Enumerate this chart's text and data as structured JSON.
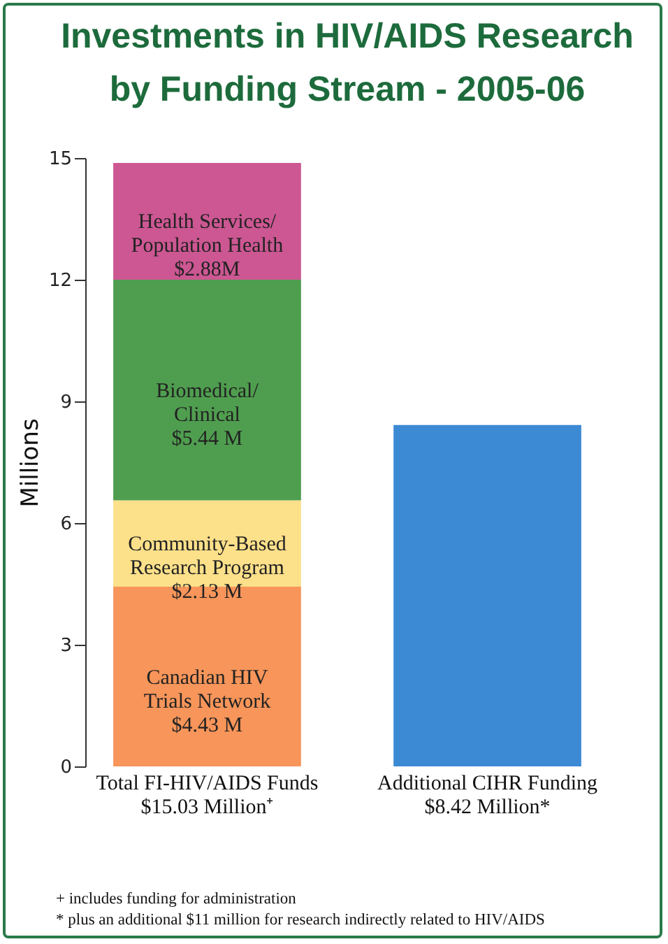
{
  "chart_data": {
    "type": "bar",
    "title": "Investments in HIV/AIDS Research\nby Funding Stream - 2005-06",
    "ylabel": "Millions",
    "stacked": true,
    "categories": [
      "Total FI-HIV/AIDS Funds\n$15.03 Million⁺",
      "Additional CIHR Funding\n$8.42 Million*"
    ],
    "series": [
      {
        "name": "Canadian HIV\nTrials Network",
        "color": "#f7955a",
        "values": [
          4.43,
          null
        ],
        "value_labels": [
          "$4.43 M",
          null
        ]
      },
      {
        "name": "Community-Based\nResearch Program",
        "color": "#fde08a",
        "values": [
          2.13,
          null
        ],
        "value_labels": [
          "$2.13 M",
          null
        ]
      },
      {
        "name": "Biomedical/\nClinical",
        "color": "#4f9e4f",
        "values": [
          5.44,
          null
        ],
        "value_labels": [
          "$5.44 M",
          null
        ]
      },
      {
        "name": "Health Services/\nPopulation Health",
        "color": "#cc5792",
        "values": [
          2.88,
          null
        ],
        "value_labels": [
          "$2.88M",
          null
        ]
      },
      {
        "color": "#3d8ad4",
        "values": [
          null,
          8.42
        ]
      }
    ],
    "ylim": [
      0,
      15
    ],
    "yticks": [
      0,
      3,
      6,
      9,
      12,
      15
    ],
    "grid": false,
    "legend": false,
    "annotations": [
      "+ includes funding for administration",
      "* plus an additional $11 million for research indirectly related to HIV/AIDS"
    ]
  }
}
